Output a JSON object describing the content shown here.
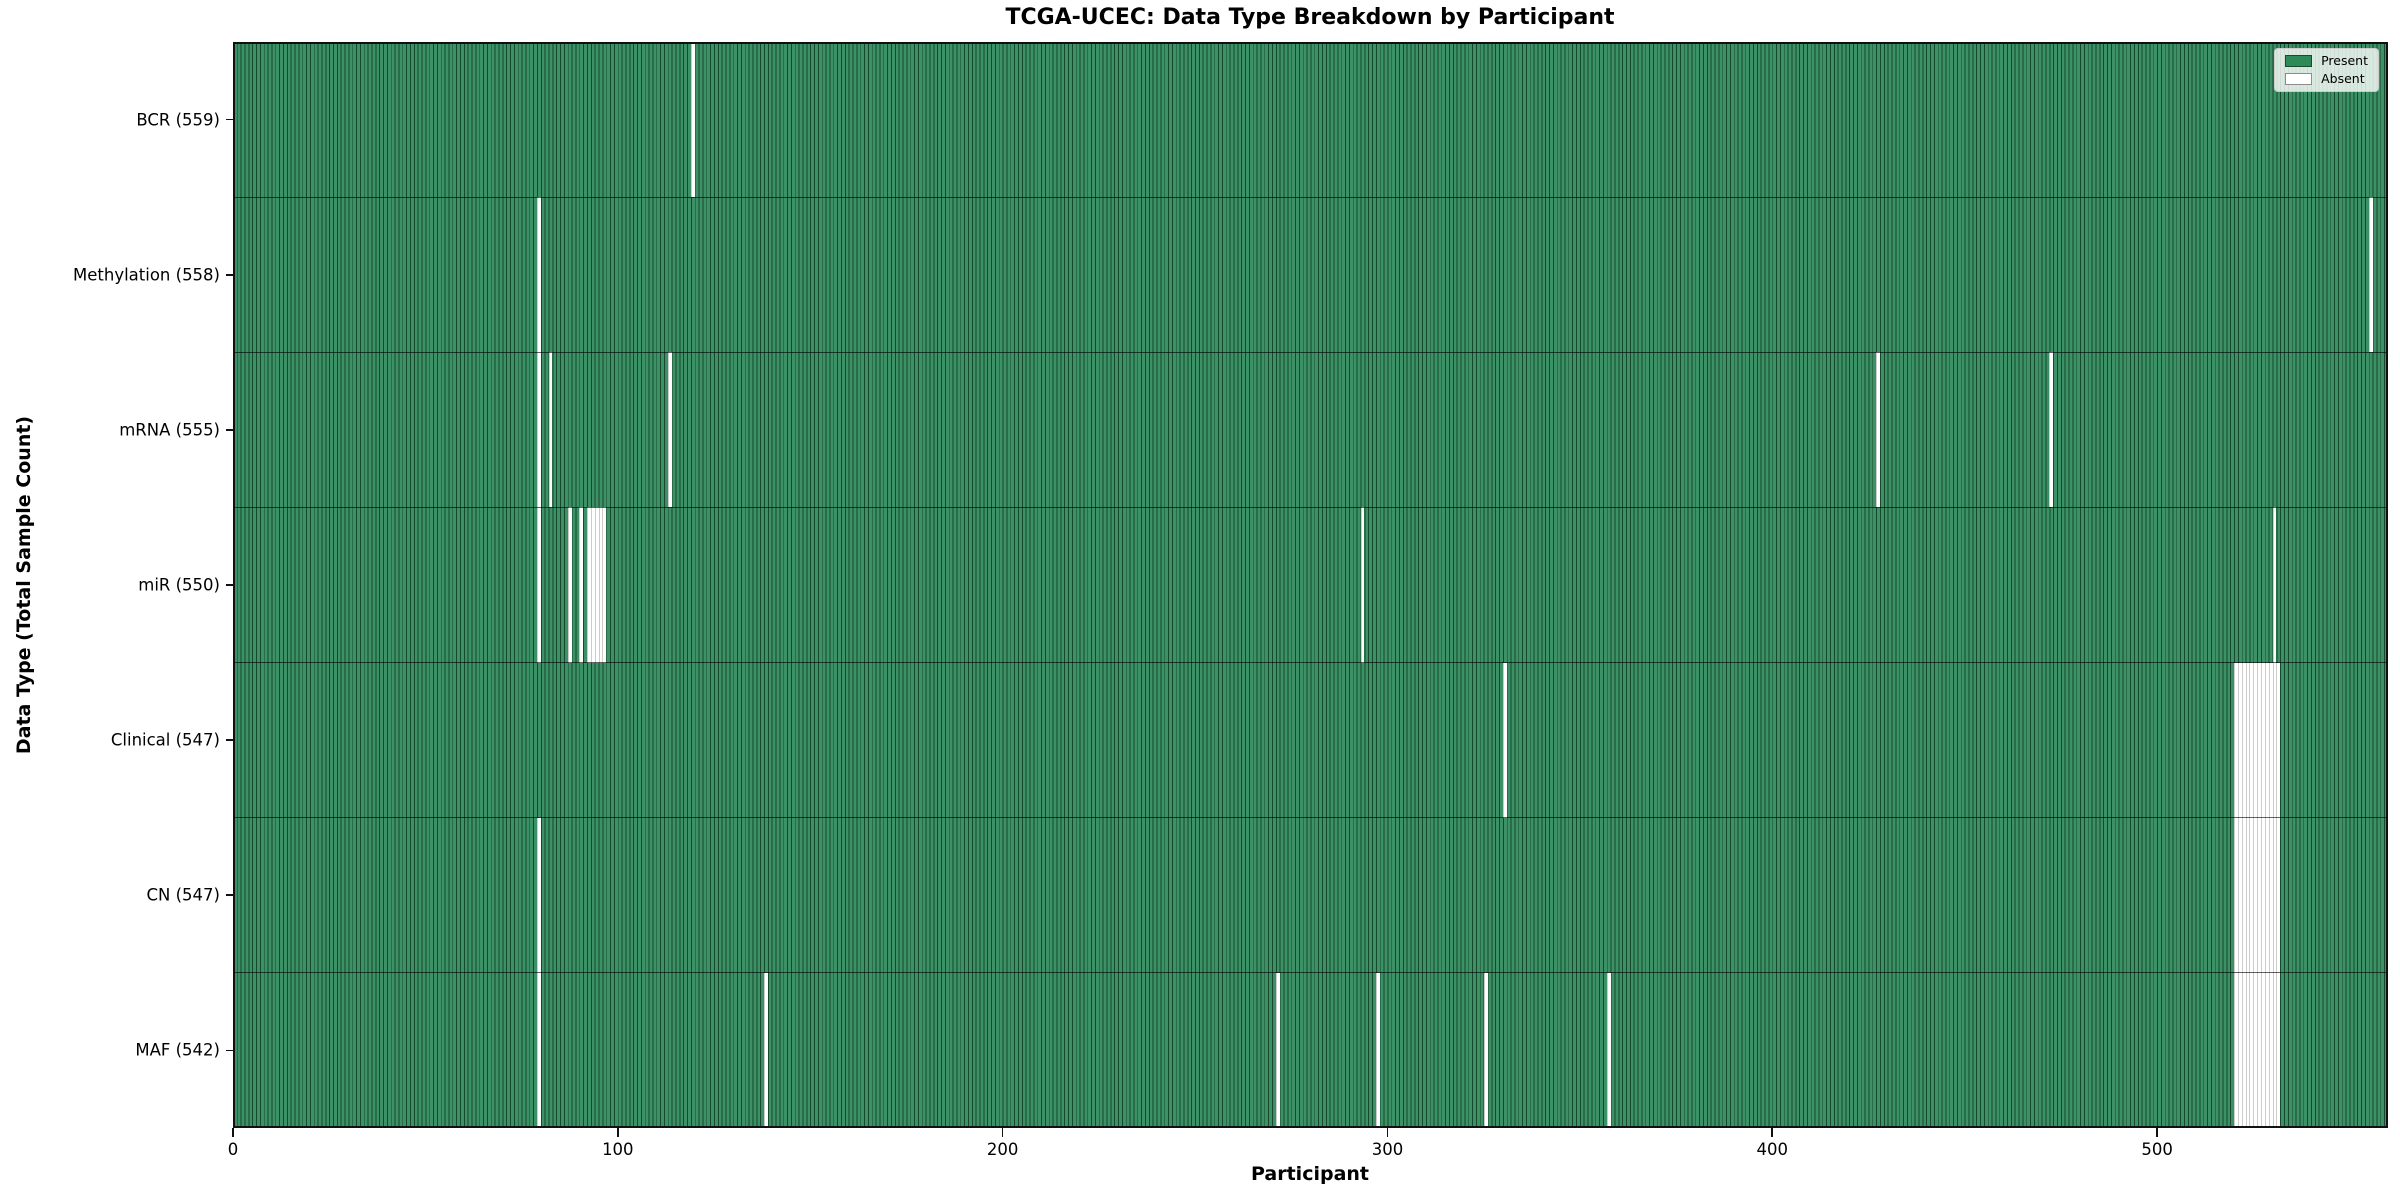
{
  "chart_data": {
    "type": "heatmap",
    "title": "TCGA-UCEC: Data Type Breakdown by Participant",
    "xlabel": "Participant",
    "ylabel": "Data Type (Total Sample Count)",
    "x_ticks": [
      0,
      100,
      200,
      300,
      400,
      500
    ],
    "x_range": [
      0,
      560
    ],
    "n_participants": 560,
    "grid": false,
    "legend_position": "upper right",
    "colors": {
      "present": "#2e8b57",
      "absent": "#ffffff",
      "bar_edge": "#16492b"
    },
    "legend": [
      {
        "label": "Present",
        "color": "#2e8b57"
      },
      {
        "label": "Absent",
        "color": "#ffffff"
      }
    ],
    "rows": [
      {
        "label": "BCR (559)",
        "data_type": "BCR",
        "present_count": 559,
        "absent_participants": [
          119
        ]
      },
      {
        "label": "Methylation (558)",
        "data_type": "Methylation",
        "present_count": 558,
        "absent_participants": [
          79,
          555
        ]
      },
      {
        "label": "mRNA (555)",
        "data_type": "mRNA",
        "present_count": 555,
        "absent_participants": [
          79,
          82,
          113,
          427,
          472
        ]
      },
      {
        "label": "miR (550)",
        "data_type": "miR",
        "present_count": 550,
        "absent_participants": [
          79,
          87,
          90,
          92,
          93,
          94,
          95,
          96,
          293,
          530
        ]
      },
      {
        "label": "Clinical (547)",
        "data_type": "Clinical",
        "present_count": 547,
        "absent_participants": [
          330,
          520,
          521,
          522,
          523,
          524,
          525,
          526,
          527,
          528,
          529,
          530,
          531
        ]
      },
      {
        "label": "CN (547)",
        "data_type": "CN",
        "present_count": 547,
        "absent_participants": [
          79,
          520,
          521,
          522,
          523,
          524,
          525,
          526,
          527,
          528,
          529,
          530,
          531
        ]
      },
      {
        "label": "MAF (542)",
        "data_type": "MAF",
        "present_count": 542,
        "absent_participants": [
          79,
          138,
          271,
          297,
          325,
          357,
          520,
          521,
          522,
          523,
          524,
          525,
          526,
          527,
          528,
          529,
          530,
          531
        ]
      }
    ]
  }
}
